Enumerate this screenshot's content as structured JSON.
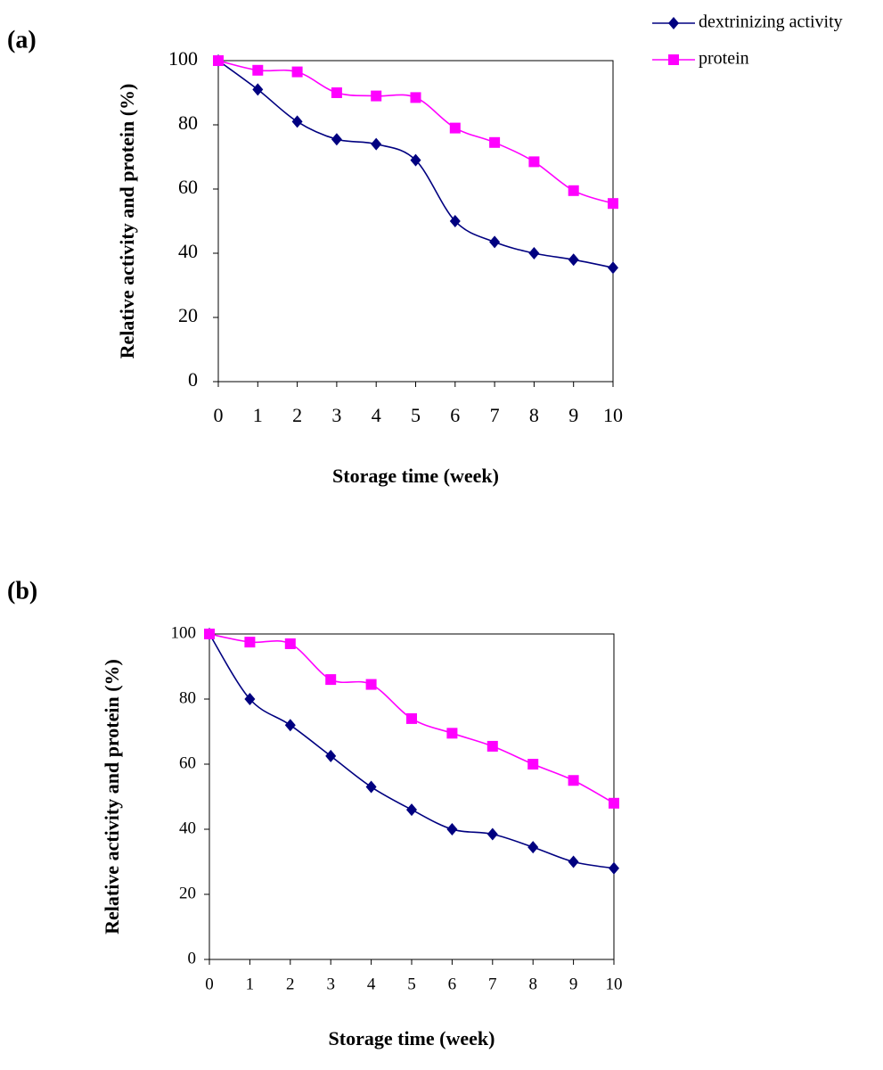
{
  "chart_data": [
    {
      "type": "line",
      "label": "(a)",
      "xlabel": "Storage time (week)",
      "ylabel": "Relative activity and protein (%)",
      "x": [
        0,
        1,
        2,
        3,
        4,
        5,
        6,
        7,
        8,
        9,
        10
      ],
      "series": [
        {
          "name": "dextrinizing activity",
          "color": "#000080",
          "marker": "diamond",
          "values": [
            100,
            91,
            81,
            75.5,
            74,
            69,
            50,
            43.5,
            40,
            38,
            35.5
          ]
        },
        {
          "name": "protein",
          "color": "#ff00ff",
          "marker": "square",
          "values": [
            100,
            97,
            96.5,
            90,
            89,
            88.5,
            79,
            74.5,
            68.5,
            59.5,
            55.5
          ]
        }
      ],
      "xlim": [
        0,
        10
      ],
      "xticks": [
        0,
        1,
        2,
        3,
        4,
        5,
        6,
        7,
        8,
        9,
        10
      ],
      "ylim": [
        0,
        100
      ],
      "yticks": [
        0,
        20,
        40,
        60,
        80,
        100
      ],
      "grid": false,
      "legend": "top-right"
    },
    {
      "type": "line",
      "label": "(b)",
      "xlabel": "Storage time (week)",
      "ylabel": "Relative activity and protein (%)",
      "x": [
        0,
        1,
        2,
        3,
        4,
        5,
        6,
        7,
        8,
        9,
        10
      ],
      "series": [
        {
          "color": "#000080",
          "marker": "diamond",
          "values": [
            100,
            80,
            72,
            62.5,
            53,
            46,
            40,
            38.5,
            34.5,
            30,
            28
          ]
        },
        {
          "color": "#ff00ff",
          "marker": "square",
          "values": [
            100,
            97.5,
            97,
            86,
            84.5,
            74,
            69.5,
            65.5,
            60,
            55,
            48
          ]
        }
      ],
      "xlim": [
        0,
        10
      ],
      "xticks": [
        0,
        1,
        2,
        3,
        4,
        5,
        6,
        7,
        8,
        9,
        10
      ],
      "ylim": [
        0,
        100
      ],
      "yticks": [
        0,
        20,
        40,
        60,
        80,
        100
      ],
      "grid": false
    }
  ]
}
